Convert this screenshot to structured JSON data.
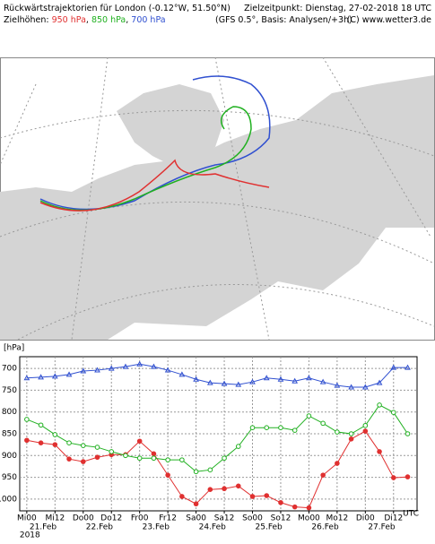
{
  "header": {
    "title_left": "Rückwärtstrajektorien für London (-0.12°W, 51.50°N)",
    "title_right": "Zielzeitpunkt: Dienstag, 27-02-2018 18 UTC",
    "levels_label": "Zielhöhen:",
    "model": "(GFS 0.5°, Basis: Analysen/+3h)",
    "copyright": "(C) www.wetter3.de"
  },
  "chart_data": {
    "type": "line",
    "y_label": "[hPa]",
    "x_unit_label": "UTC",
    "year_label": "2018",
    "x": [
      0,
      6,
      12,
      18,
      24,
      30,
      36,
      42,
      48,
      54,
      60,
      66,
      72,
      78,
      84,
      90,
      96,
      102,
      108,
      114,
      120,
      126,
      132,
      138,
      144,
      150,
      156,
      162
    ],
    "xlim": [
      -3,
      166
    ],
    "xticks": [
      {
        "value": 0,
        "label": "Mi00"
      },
      {
        "value": 12,
        "label": "Mi12"
      },
      {
        "value": 24,
        "label": "Do00"
      },
      {
        "value": 36,
        "label": "Do12"
      },
      {
        "value": 48,
        "label": "Fr00"
      },
      {
        "value": 60,
        "label": "Fr12"
      },
      {
        "value": 72,
        "label": "Sa00"
      },
      {
        "value": 84,
        "label": "Sa12"
      },
      {
        "value": 96,
        "label": "So00"
      },
      {
        "value": 108,
        "label": "So12"
      },
      {
        "value": 120,
        "label": "Mo00"
      },
      {
        "value": 132,
        "label": "Mo12"
      },
      {
        "value": 144,
        "label": "Di00"
      },
      {
        "value": 156,
        "label": "Di12"
      }
    ],
    "date_ticks": [
      {
        "value": 0,
        "label": "21.Feb"
      },
      {
        "value": 24,
        "label": "22.Feb"
      },
      {
        "value": 48,
        "label": "23.Feb"
      },
      {
        "value": 72,
        "label": "24.Feb"
      },
      {
        "value": 96,
        "label": "25.Feb"
      },
      {
        "value": 120,
        "label": "26.Feb"
      },
      {
        "value": 144,
        "label": "27.Feb"
      }
    ],
    "ylim": [
      1027,
      673
    ],
    "yticks": [
      700,
      750,
      800,
      850,
      900,
      950,
      1000
    ],
    "grid": true,
    "series": [
      {
        "name": "950 hPa",
        "color": "#e03030",
        "marker": "circle",
        "values": [
          865,
          871,
          875,
          908,
          914,
          904,
          898,
          898,
          867,
          896,
          945,
          994,
          1011,
          978,
          976,
          970,
          994,
          992,
          1008,
          1018,
          1020,
          945,
          918,
          862,
          844,
          891,
          951,
          949
        ]
      },
      {
        "name": "850 hPa",
        "color": "#20b020",
        "marker": "open-circle",
        "values": [
          817,
          830,
          852,
          871,
          877,
          881,
          891,
          900,
          906,
          906,
          910,
          910,
          937,
          933,
          906,
          879,
          836,
          836,
          836,
          842,
          809,
          826,
          846,
          850,
          831,
          784,
          801,
          850
        ]
      },
      {
        "name": "700 hPa",
        "color": "#3050d0",
        "marker": "triangle",
        "values": [
          722,
          720,
          718,
          714,
          706,
          704,
          700,
          696,
          690,
          696,
          704,
          714,
          725,
          733,
          735,
          737,
          731,
          722,
          725,
          729,
          722,
          731,
          739,
          743,
          743,
          733,
          698,
          698
        ]
      }
    ]
  }
}
